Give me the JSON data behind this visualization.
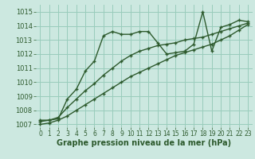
{
  "xlabel": "Graphe pression niveau de la mer (hPa)",
  "bg_color": "#cce8e0",
  "grid_color": "#99ccbb",
  "line_color": "#2d5a2d",
  "xlim": [
    -0.5,
    23.5
  ],
  "ylim": [
    1006.8,
    1015.5
  ],
  "xticks": [
    0,
    1,
    2,
    3,
    4,
    5,
    6,
    7,
    8,
    9,
    10,
    11,
    12,
    13,
    14,
    15,
    16,
    17,
    18,
    19,
    20,
    21,
    22,
    23
  ],
  "yticks": [
    1007,
    1008,
    1009,
    1010,
    1011,
    1012,
    1013,
    1014,
    1015
  ],
  "series": [
    [
      1007.3,
      1007.3,
      1007.4,
      1008.8,
      1009.5,
      1010.8,
      1011.5,
      1013.3,
      1013.6,
      1013.4,
      1013.4,
      1013.6,
      1013.6,
      1012.8,
      1012.0,
      1012.1,
      1012.2,
      1012.7,
      1015.0,
      1012.2,
      1013.9,
      1014.1,
      1014.4,
      1014.3
    ],
    [
      1007.2,
      1007.3,
      1007.5,
      1008.2,
      1008.8,
      1009.4,
      1009.9,
      1010.5,
      1011.0,
      1011.5,
      1011.9,
      1012.2,
      1012.4,
      1012.6,
      1012.7,
      1012.8,
      1013.0,
      1013.1,
      1013.2,
      1013.4,
      1013.6,
      1013.8,
      1014.0,
      1014.2
    ],
    [
      1007.0,
      1007.1,
      1007.3,
      1007.6,
      1008.0,
      1008.4,
      1008.8,
      1009.2,
      1009.6,
      1010.0,
      1010.4,
      1010.7,
      1011.0,
      1011.3,
      1011.6,
      1011.9,
      1012.1,
      1012.3,
      1012.5,
      1012.7,
      1013.0,
      1013.3,
      1013.7,
      1014.1
    ]
  ]
}
